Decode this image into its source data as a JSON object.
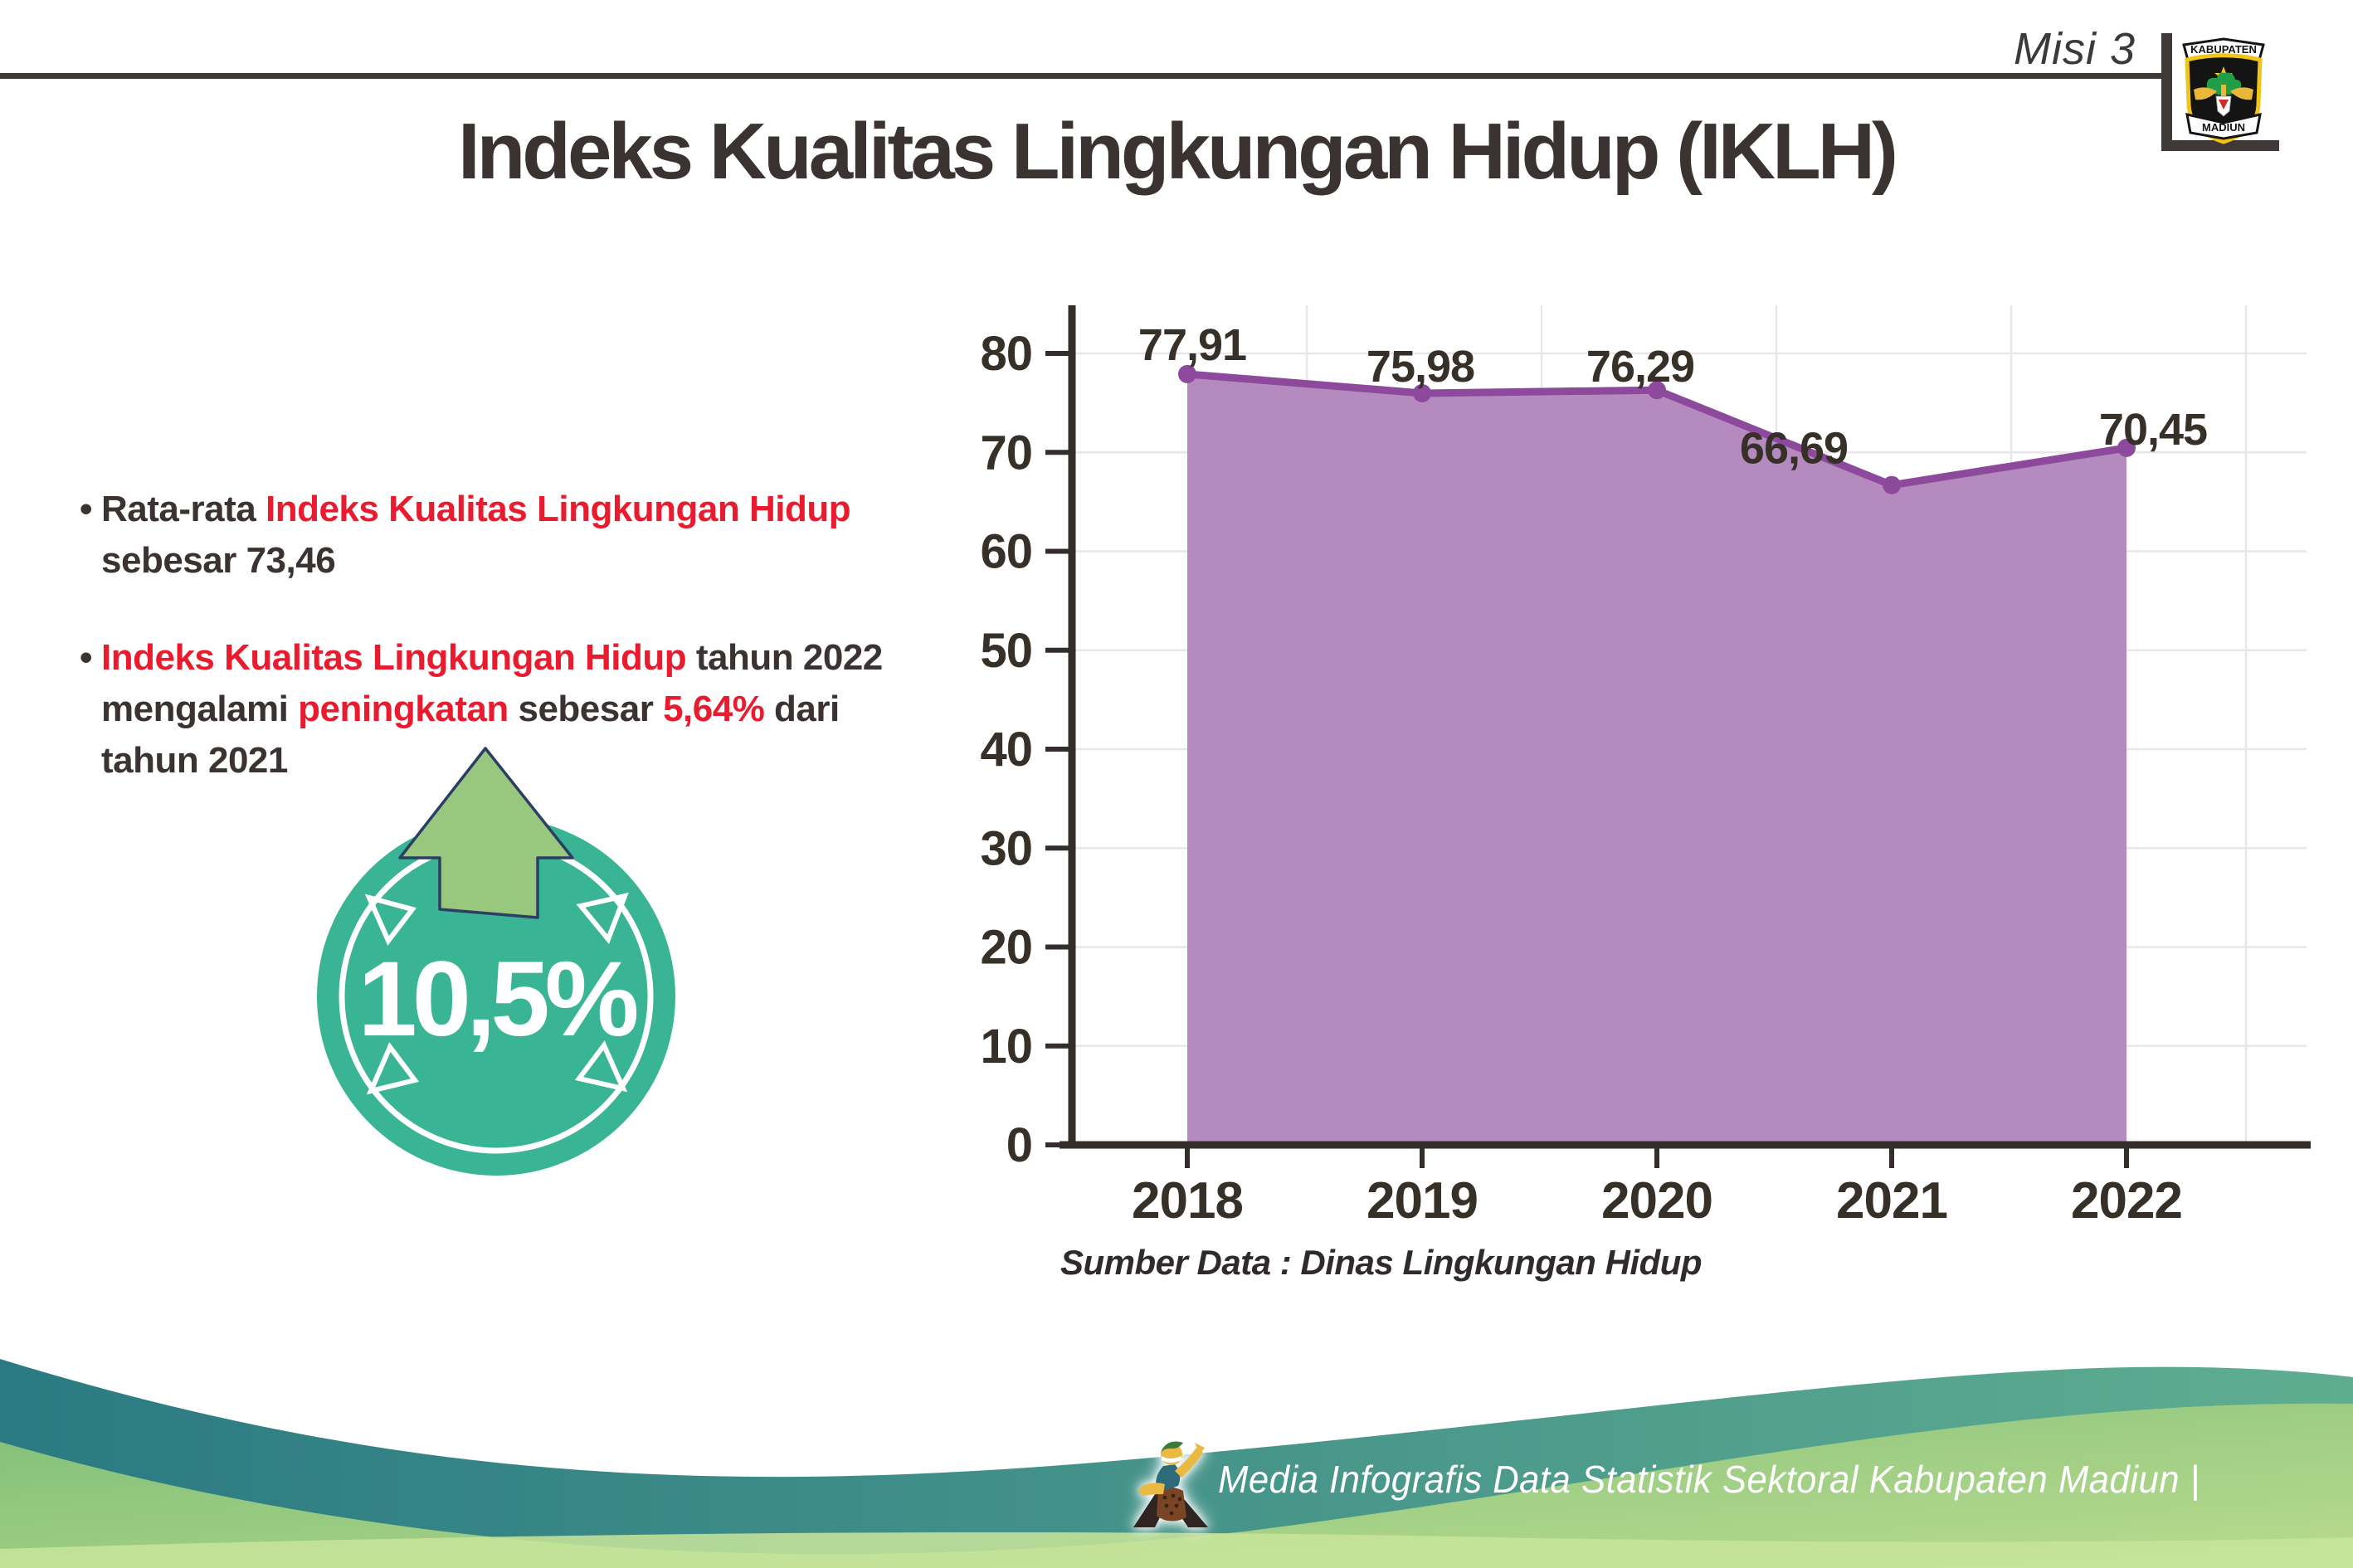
{
  "colors": {
    "dark_text": "#3a3332",
    "red_text": "#e81c2e",
    "header_line": "#3e3a38",
    "badge_teal": "#39b495",
    "arrow_green": "#98c87e",
    "arrow_outline": "#2d3e65",
    "chart_fill": "#ae81ba",
    "chart_line": "#8d4a9c",
    "chart_marker": "#8d4a9c",
    "axis": "#332d2c",
    "gridline": "#e9e6e9",
    "tick_label": "#363029",
    "footer_teal_dark": "#2b7a83",
    "footer_teal_light": "#5fad90",
    "footer_green_dark": "#7fbe78",
    "footer_green_light": "#b9db8e",
    "footer_strip": "#c8e59a"
  },
  "header": {
    "misi_label": "Misi 3",
    "logo": {
      "top_text": "KABUPATEN",
      "bottom_text": "MADIUN"
    }
  },
  "title": "Indeks Kualitas Lingkungan Hidup (IKLH)",
  "bullets": [
    {
      "marker": "•",
      "segments": [
        {
          "text": "Rata-rata ",
          "color": "dark"
        },
        {
          "text": "Indeks Kualitas Lingkungan Hidup",
          "color": "red"
        },
        {
          "text": " sebesar 73,46",
          "color": "dark"
        }
      ]
    },
    {
      "marker": "•",
      "segments": [
        {
          "text": "Indeks Kualitas Lingkungan Hidup",
          "color": "red"
        },
        {
          "text": " tahun 2022 mengalami ",
          "color": "dark"
        },
        {
          "text": "peningkatan",
          "color": "red"
        },
        {
          "text": " sebesar ",
          "color": "dark"
        },
        {
          "text": "5,64%",
          "color": "red"
        },
        {
          "text": " dari tahun 2021",
          "color": "dark"
        }
      ]
    }
  ],
  "badge": {
    "value": "10,5%"
  },
  "chart_data": {
    "type": "area",
    "categories": [
      "2018",
      "2019",
      "2020",
      "2021",
      "2022"
    ],
    "values": [
      77.91,
      75.98,
      76.29,
      66.69,
      70.45
    ],
    "value_labels": [
      "77,91",
      "75,98",
      "76,29",
      "66,69",
      "70,45"
    ],
    "title": "",
    "xlabel": "",
    "ylabel": "",
    "ylim": [
      0,
      80
    ],
    "ytick_step": 10,
    "ytick_labels": [
      "0",
      "10",
      "20",
      "30",
      "40",
      "50",
      "60",
      "70",
      "80"
    ],
    "grid": true,
    "legend": false
  },
  "source_note": "Sumber Data : Dinas Lingkungan Hidup",
  "footer": {
    "text": "Media Infografis Data Statistik Sektoral Kabupaten Madiun |"
  }
}
